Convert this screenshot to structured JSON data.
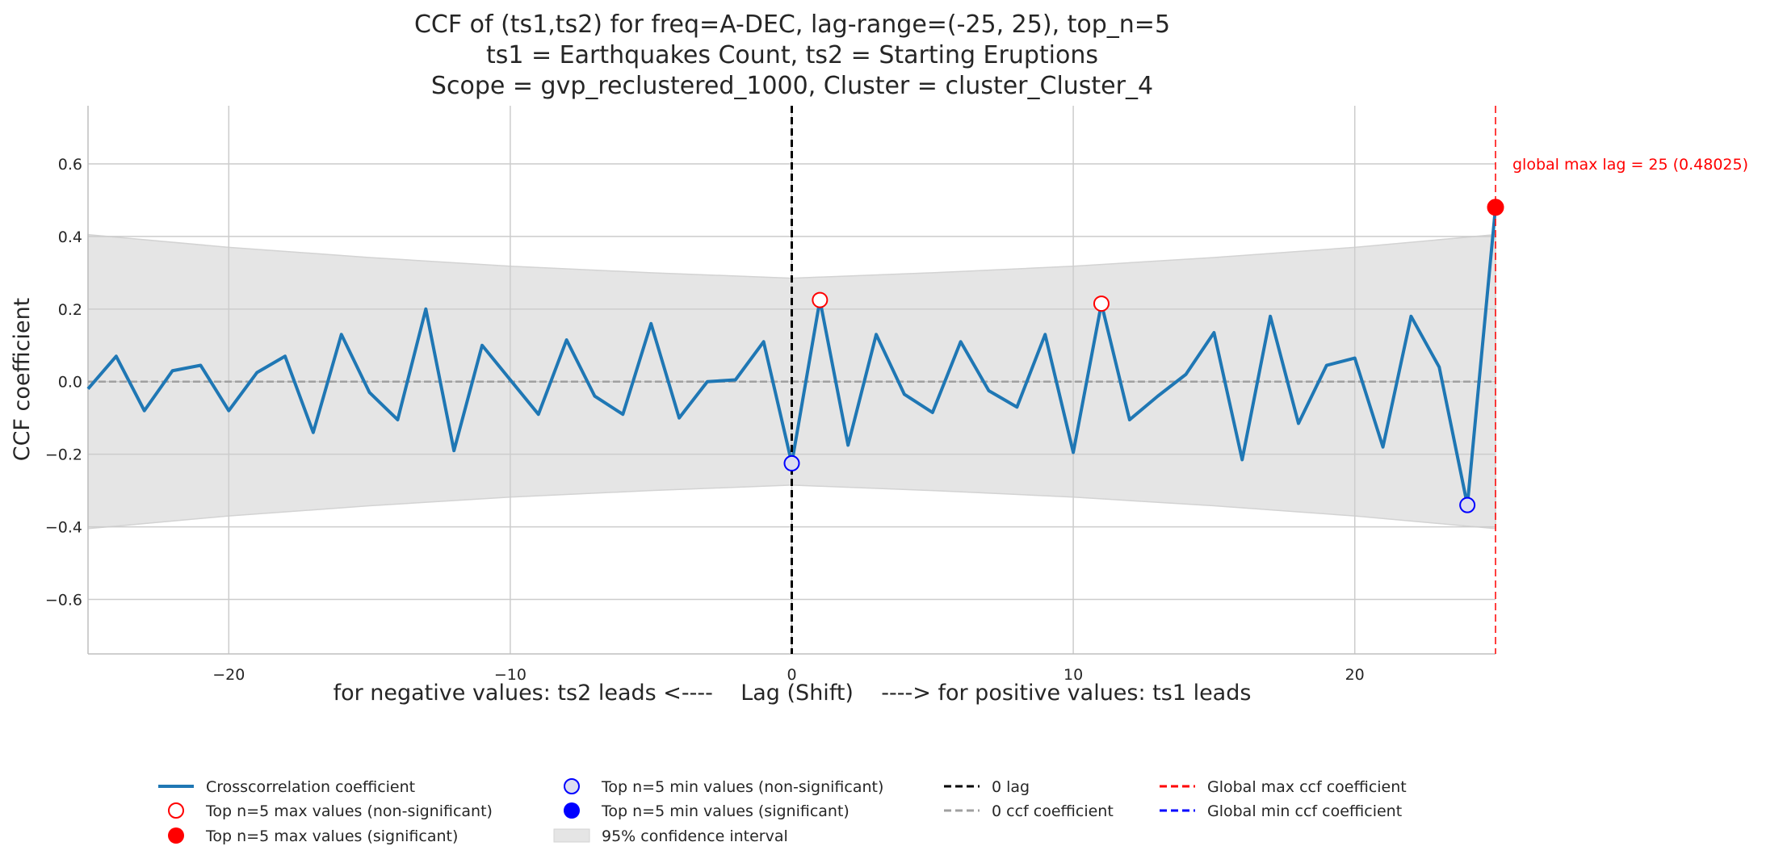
{
  "chart_data": {
    "type": "line",
    "title_lines": [
      "CCF of (ts1,ts2) for freq=A-DEC, lag-range=(-25, 25), top_n=5",
      "ts1 = Earthquakes Count, ts2 = Starting Eruptions",
      "Scope = gvp_reclustered_1000, Cluster = cluster_Cluster_4"
    ],
    "xlabel": "for negative values: ts2 leads <----    Lag (Shift)    ----> for positive values: ts1 leads",
    "ylabel": "CCF coefficient",
    "xlim": [
      -25,
      25
    ],
    "ylim": [
      -0.75,
      0.76
    ],
    "xticks": [
      -20,
      -10,
      0,
      10,
      20
    ],
    "xtick_labels": [
      "−20",
      "−10",
      "0",
      "10",
      "20"
    ],
    "yticks": [
      -0.6,
      -0.4,
      -0.2,
      0.0,
      0.2,
      0.4,
      0.6
    ],
    "ytick_labels": [
      "−0.6",
      "−0.4",
      "−0.2",
      "0.0",
      "0.2",
      "0.4",
      "0.6"
    ],
    "grid": true,
    "series": [
      {
        "name": "Crosscorrelation coefficient",
        "color": "#1f77b4",
        "x": [
          -25,
          -24,
          -23,
          -22,
          -21,
          -20,
          -19,
          -18,
          -17,
          -16,
          -15,
          -14,
          -13,
          -12,
          -11,
          -10,
          -9,
          -8,
          -7,
          -6,
          -5,
          -4,
          -3,
          -2,
          -1,
          0,
          1,
          2,
          3,
          4,
          5,
          6,
          7,
          8,
          9,
          10,
          11,
          12,
          13,
          14,
          15,
          16,
          17,
          18,
          19,
          20,
          21,
          22,
          23,
          24,
          25
        ],
        "y": [
          -0.02,
          0.07,
          -0.08,
          0.03,
          0.045,
          -0.08,
          0.025,
          0.07,
          -0.14,
          0.13,
          -0.03,
          -0.105,
          0.2,
          -0.19,
          0.1,
          0.005,
          -0.09,
          0.115,
          -0.04,
          -0.09,
          0.16,
          -0.1,
          0.0,
          0.005,
          0.11,
          -0.225,
          0.225,
          -0.175,
          0.13,
          -0.035,
          -0.085,
          0.11,
          -0.025,
          -0.07,
          0.13,
          -0.195,
          0.215,
          -0.105,
          -0.04,
          0.02,
          0.135,
          -0.215,
          0.18,
          -0.115,
          0.045,
          0.065,
          -0.18,
          0.18,
          0.04,
          -0.34,
          0.48025
        ]
      }
    ],
    "confidence_interval": {
      "label": "95% confidence interval",
      "x": [
        -25,
        -20,
        -15,
        -10,
        -5,
        0,
        5,
        10,
        15,
        20,
        25
      ],
      "upper": [
        0.405,
        0.37,
        0.342,
        0.318,
        0.3,
        0.285,
        0.3,
        0.318,
        0.342,
        0.37,
        0.405
      ]
    },
    "top_max_nonsig": {
      "x": [
        1,
        11
      ],
      "y": [
        0.225,
        0.215
      ]
    },
    "top_max_sig": {
      "x": [
        25
      ],
      "y": [
        0.48025
      ]
    },
    "top_min_nonsig": {
      "x": [
        0,
        24
      ],
      "y": [
        -0.225,
        -0.34
      ]
    },
    "zero_lag_x": 0,
    "global_max_lag_x": 25,
    "annotation": "global max lag = 25 (0.48025)",
    "colors": {
      "line": "#1f77b4",
      "max": "#ff0000",
      "min": "#0000ff",
      "ci_fill": "#e5e5e5",
      "grid": "#cccccc",
      "zero_line": "#a0a0a0"
    },
    "legend": {
      "placement": "bottom",
      "items": [
        {
          "label": "Crosscorrelation coefficient",
          "marker": "line-blue"
        },
        {
          "label": "Top n=5 max values (non-significant)",
          "marker": "circle-red-open"
        },
        {
          "label": "Top n=5 max values (significant)",
          "marker": "circle-red-filled"
        },
        {
          "label": "Top n=5 min values (non-significant)",
          "marker": "circle-blue-open"
        },
        {
          "label": "Top n=5 min values (significant)",
          "marker": "circle-blue-filled"
        },
        {
          "label": "95% confidence interval",
          "marker": "patch-gray"
        },
        {
          "label": "0 lag",
          "marker": "dash-black"
        },
        {
          "label": "0 ccf coefficient",
          "marker": "dash-gray"
        },
        {
          "label": "Global max ccf coefficient",
          "marker": "dash-red"
        },
        {
          "label": "Global min ccf coefficient",
          "marker": "dash-blue"
        }
      ]
    }
  }
}
